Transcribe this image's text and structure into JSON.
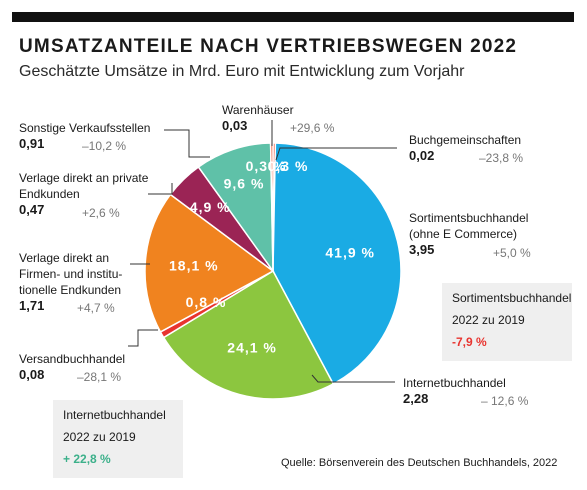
{
  "header": {
    "title": "UMSATZANTEILE NACH VERTRIEBSWEGEN 2022",
    "subtitle": "Geschätzte Umsätze in Mrd. Euro mit Entwicklung zum Vorjahr"
  },
  "chart_data": {
    "type": "pie",
    "title": "UMSATZANTEILE NACH VERTRIEBSWEGEN 2022",
    "subtitle": "Geschätzte Umsätze in Mrd. Euro mit Entwicklung zum Vorjahr",
    "slices": [
      {
        "name": "Buchgemeinschaften",
        "share": 0.3,
        "share_label": "0,3 %",
        "value": "0,02",
        "change": "–23,8 %",
        "color": "#e8452f"
      },
      {
        "name": "Sortimentsbuchhandel (ohne E Commerce)",
        "share": 41.9,
        "share_label": "41,9 %",
        "value": "3,95",
        "change": "+5,0 %",
        "color": "#1aabe4"
      },
      {
        "name": "Internetbuchhandel",
        "share": 24.1,
        "share_label": "24,1 %",
        "value": "2,28",
        "change": "– 12,6 %",
        "color": "#8cc63f"
      },
      {
        "name": "Versandbuchhandel",
        "share": 0.8,
        "share_label": "0,8 %",
        "value": "0,08",
        "change": "–28,1 %",
        "color": "#e8342f"
      },
      {
        "name": "Verlage direkt an Firmen- und institutionelle Endkunden",
        "share": 18.1,
        "share_label": "18,1 %",
        "value": "1,71",
        "change": "+4,7 %",
        "color": "#f0831f"
      },
      {
        "name": "Verlage direkt an private Endkunden",
        "share": 4.9,
        "share_label": "4,9 %",
        "value": "0,47",
        "change": "+2,6 %",
        "color": "#9b2455"
      },
      {
        "name": "Sonstige Verkaufsstellen",
        "share": 9.6,
        "share_label": "9,6 %",
        "value": "0,91",
        "change": "–10,2 %",
        "color": "#5fc1a8"
      },
      {
        "name": "Warenhäuser",
        "share": 0.3,
        "share_label": "0,3 %",
        "value": "0,03",
        "change": "+29,6 %",
        "color": "#e85a3a"
      }
    ]
  },
  "labels": {
    "warenhaeuser": {
      "name": "Warenhäuser",
      "value": "0,03",
      "change": "+29,6 %"
    },
    "sonstige": {
      "name": "Sonstige Verkaufsstellen",
      "value": "0,91",
      "change": "–10,2 %"
    },
    "verlage_privat": {
      "name1": "Verlage direkt an private",
      "name2": "Endkunden",
      "value": "0,47",
      "change": "+2,6 %"
    },
    "verlage_firmen": {
      "name1": "Verlage direkt an",
      "name2": "Firmen- und institu-",
      "name3": "tionelle Endkunden",
      "value": "1,71",
      "change": "+4,7 %"
    },
    "versand": {
      "name": "Versandbuchhandel",
      "value": "0,08",
      "change": "–28,1 %"
    },
    "buchgemeinschaften": {
      "name": "Buchgemeinschaften",
      "value": "0,02",
      "change": "–23,8 %"
    },
    "sortiment": {
      "name1": "Sortimentsbuchhandel",
      "name2": "(ohne E Commerce)",
      "value": "3,95",
      "change": "+5,0 %"
    },
    "internet": {
      "name": "Internetbuchhandel",
      "value": "2,28",
      "change": "– 12,6 %"
    }
  },
  "boxes": {
    "sortiment": {
      "line1": "Sortimentsbuchhandel",
      "line2": "2022 zu 2019",
      "change": "-7,9 %",
      "change_color": "#e8342f"
    },
    "internet": {
      "line1": "Internetbuchhandel",
      "line2": "2022 zu 2019",
      "change": "+ 22,8 %",
      "change_color": "#3cb08a"
    }
  },
  "source": "Quelle: Börsenverein des Deutschen Buchhandels, 2022"
}
